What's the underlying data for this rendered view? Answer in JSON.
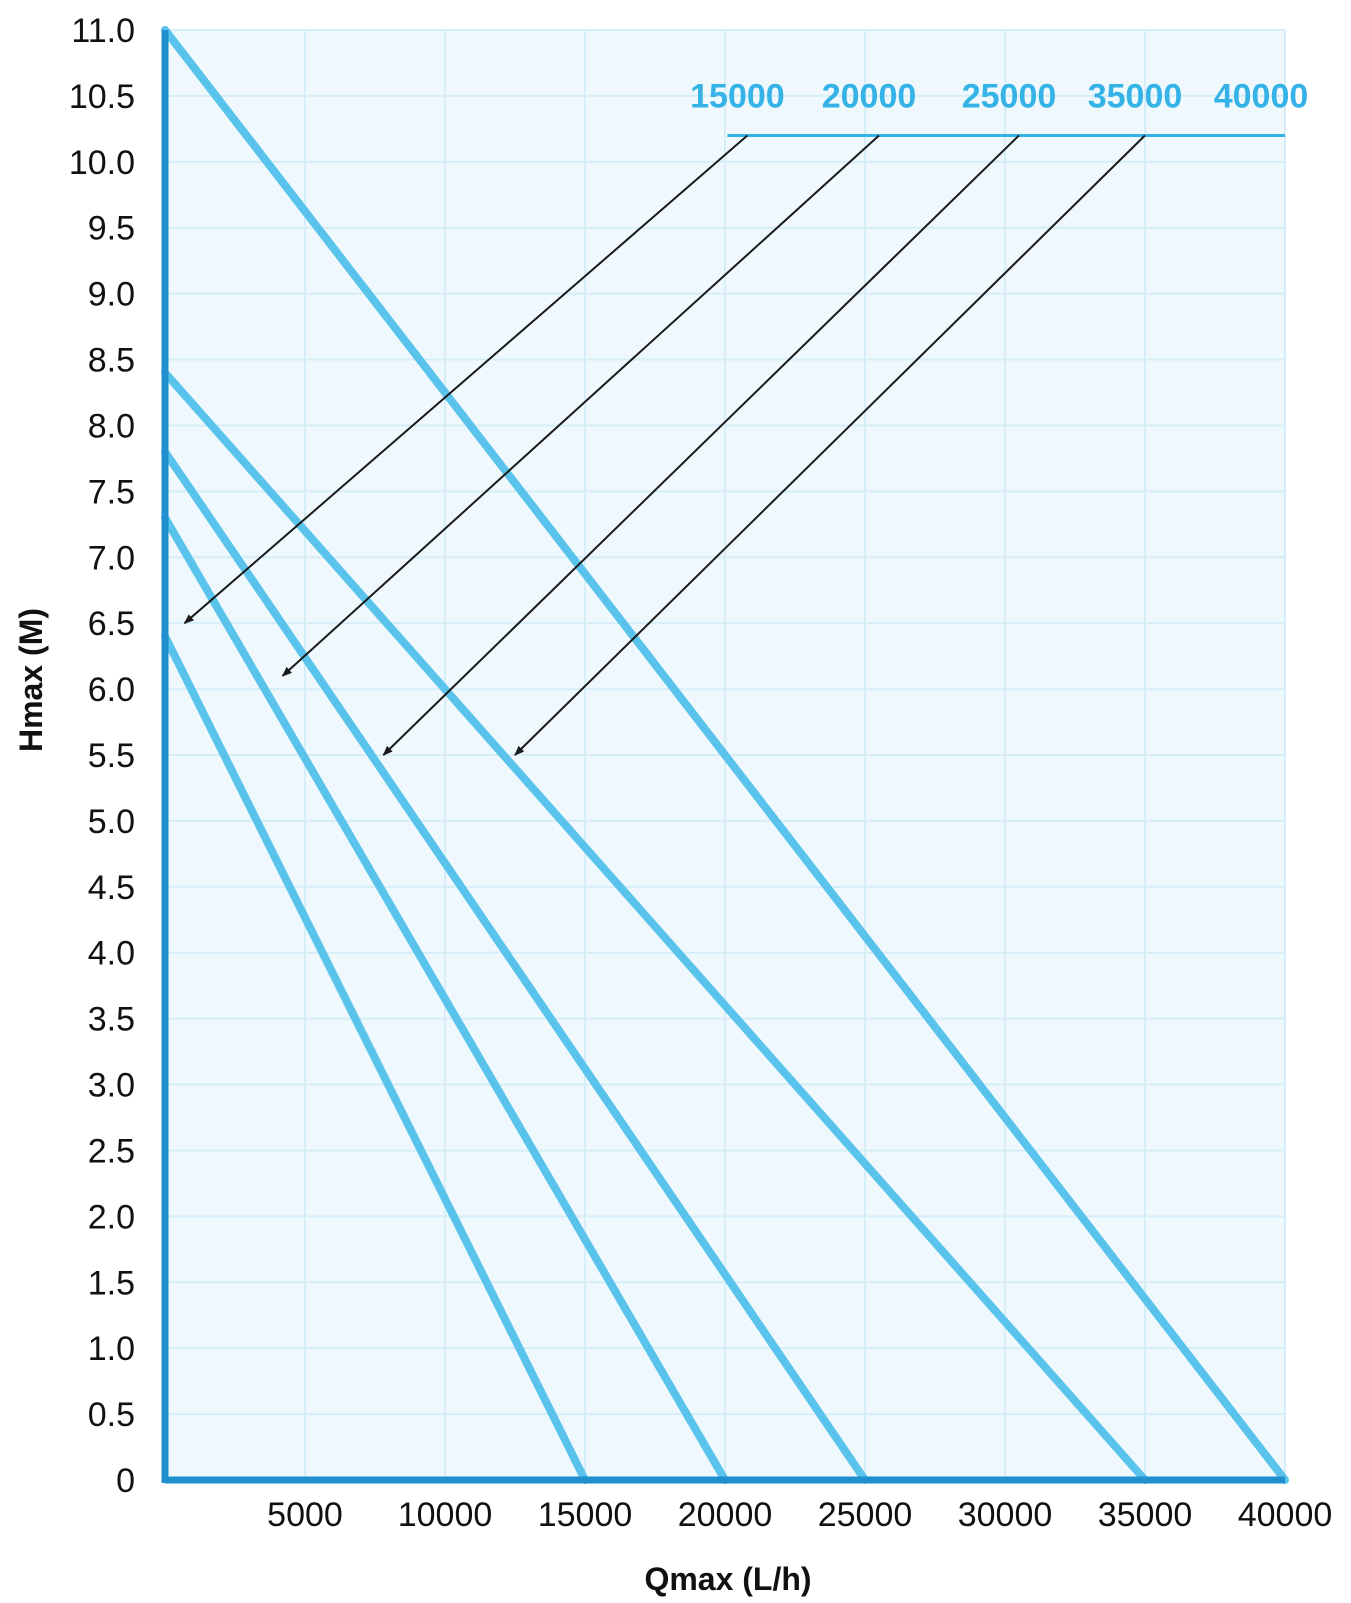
{
  "chart_data": {
    "type": "line",
    "xlabel": "Qmax (L/h)",
    "ylabel": "Hmax (M)",
    "xlim": [
      0,
      40000
    ],
    "ylim": [
      0,
      11.0
    ],
    "xticks": [
      "5000",
      "10000",
      "15000",
      "20000",
      "25000",
      "30000",
      "35000",
      "40000"
    ],
    "yticks": [
      "0",
      "0.5",
      "1.0",
      "1.5",
      "2.0",
      "2.5",
      "3.0",
      "3.5",
      "4.0",
      "4.5",
      "5.0",
      "5.5",
      "6.0",
      "6.5",
      "7.0",
      "7.5",
      "8.0",
      "8.5",
      "9.0",
      "9.5",
      "10.0",
      "10.5",
      "11.0"
    ],
    "grid": true,
    "series": [
      {
        "name": "15000",
        "x": [
          0,
          15000
        ],
        "y": [
          6.4,
          0
        ]
      },
      {
        "name": "20000",
        "x": [
          0,
          20000
        ],
        "y": [
          7.3,
          0
        ]
      },
      {
        "name": "25000",
        "x": [
          0,
          25000
        ],
        "y": [
          7.8,
          0
        ]
      },
      {
        "name": "35000",
        "x": [
          0,
          35000
        ],
        "y": [
          8.4,
          0
        ]
      },
      {
        "name": "40000",
        "x": [
          0,
          40000
        ],
        "y": [
          11.0,
          0
        ]
      }
    ],
    "label_row_y": 10.2,
    "leaders": [
      {
        "label": "15000",
        "from": [
          20800,
          10.2
        ],
        "to": [
          700,
          6.5
        ]
      },
      {
        "label": "20000",
        "from": [
          25500,
          10.2
        ],
        "to": [
          4200,
          6.1
        ]
      },
      {
        "label": "25000",
        "from": [
          30500,
          10.2
        ],
        "to": [
          7800,
          5.5
        ]
      },
      {
        "label": "35000",
        "from": [
          35000,
          10.2
        ],
        "to": [
          12500,
          5.5
        ]
      },
      {
        "label": "40000",
        "from": [
          39500,
          10.2
        ],
        "to": null
      }
    ],
    "colors": {
      "line": "#5ac3ec",
      "label": "#36b3e6",
      "axis": "#1f8fce",
      "grid": "#d6eef8",
      "arrow": "#1a1a1a"
    }
  }
}
